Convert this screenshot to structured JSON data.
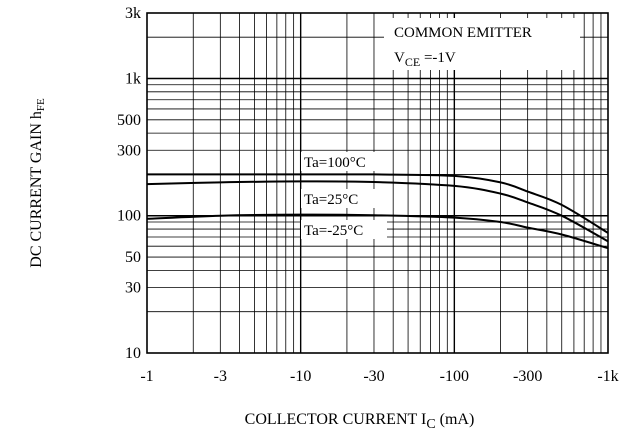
{
  "chart_data": {
    "type": "line",
    "title": "",
    "xlabel": "COLLECTOR CURRENT I",
    "xlabel_sub": "C",
    "xlabel_unit": " (mA)",
    "ylabel": "DC CURRENT GAIN h",
    "ylabel_sub": "FE",
    "x_scale": "log",
    "y_scale": "log",
    "xlim": [
      1,
      1000
    ],
    "ylim": [
      10,
      3000
    ],
    "grid": true,
    "x_ticks": [
      1,
      3,
      10,
      30,
      100,
      300,
      1000
    ],
    "x_tick_labels": [
      "-1",
      "-3",
      "-10",
      "-30",
      "-100",
      "-300",
      "-1k"
    ],
    "y_ticks": [
      10,
      30,
      50,
      100,
      300,
      500,
      1000,
      3000
    ],
    "y_tick_labels": [
      "10",
      "30",
      "50",
      "100",
      "300",
      "500",
      "1k",
      "3k"
    ],
    "annotations": {
      "line1": "COMMON EMITTER",
      "line2_prefix": "V",
      "line2_sub": "CE",
      "line2_suffix": " =-1V"
    },
    "series": [
      {
        "name": "Ta=100°C",
        "x": [
          1,
          3,
          10,
          30,
          100,
          200,
          300,
          500,
          1000
        ],
        "y": [
          200,
          200,
          200,
          200,
          195,
          175,
          150,
          120,
          75
        ]
      },
      {
        "name": "Ta=25°C",
        "x": [
          1,
          3,
          10,
          30,
          100,
          200,
          300,
          500,
          1000
        ],
        "y": [
          170,
          175,
          178,
          176,
          165,
          145,
          125,
          100,
          65
        ]
      },
      {
        "name": "Ta=-25°C",
        "x": [
          1,
          3,
          10,
          30,
          100,
          200,
          300,
          500,
          1000
        ],
        "y": [
          95,
          100,
          102,
          101,
          97,
          90,
          82,
          73,
          58
        ]
      }
    ],
    "colors": {
      "line": "#000000",
      "grid": "#000000",
      "background": "#ffffff"
    }
  }
}
